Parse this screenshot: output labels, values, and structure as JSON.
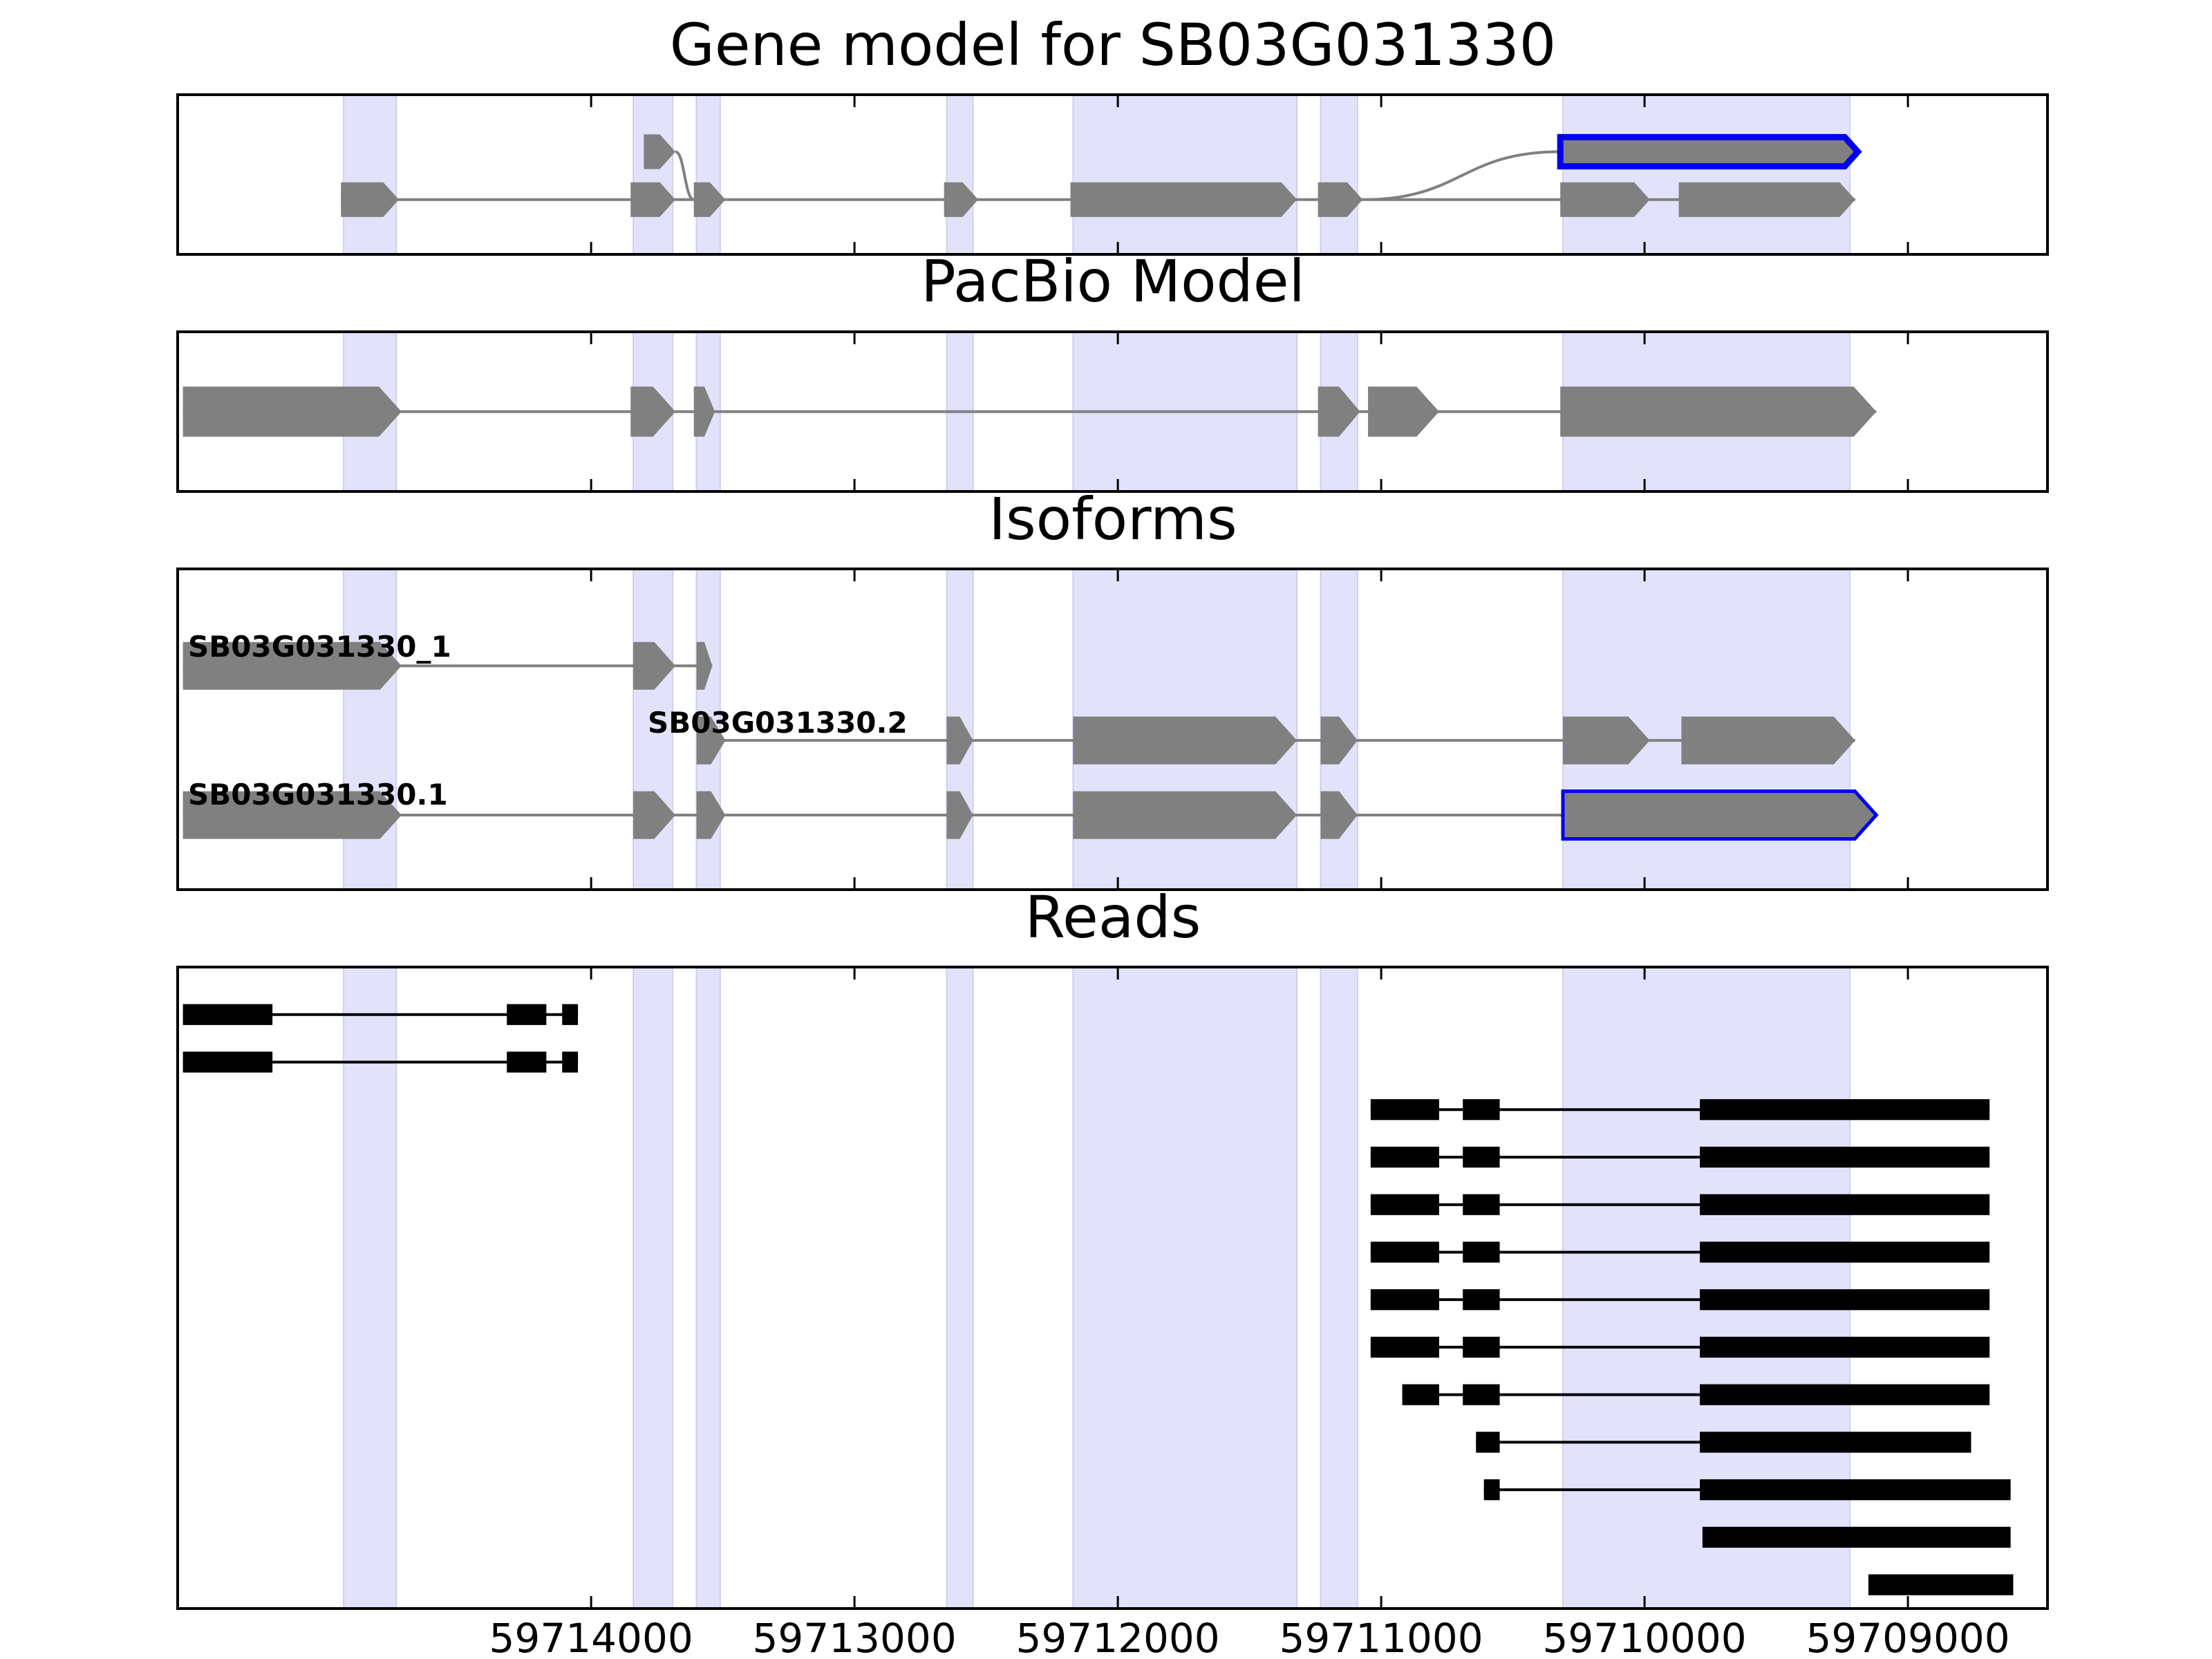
{
  "colors": {
    "highlight_band": "#e2e2fb",
    "feature": "#808080",
    "selected_outline": "#0000ee",
    "read": "#000000",
    "axis": "#000000",
    "intron": "#808080"
  },
  "chart_data": {
    "type": "genome-track",
    "x_axis": {
      "reversed": true,
      "xlim": [
        59715570,
        59708470
      ],
      "ticks": [
        59714000,
        59713000,
        59712000,
        59711000,
        59710000,
        59709000
      ],
      "tick_labels": [
        "59714000",
        "59713000",
        "59712000",
        "59711000",
        "59710000",
        "59709000"
      ]
    },
    "highlight_regions": [
      [
        59714940,
        59714740
      ],
      [
        59713840,
        59713690
      ],
      [
        59713600,
        59713510
      ],
      [
        59712650,
        59712550
      ],
      [
        59712170,
        59711320
      ],
      [
        59711230,
        59711090
      ],
      [
        59710310,
        59709220
      ]
    ],
    "panels": [
      {
        "title": "Gene model for SB03G031330",
        "ylim": [
          0,
          3.5
        ],
        "models": [
          {
            "y": 1.2,
            "half_height": 0.38,
            "exons": [
              [
                59714950,
                59714730
              ],
              [
                59713850,
                59713680
              ],
              [
                59713610,
                59713490
              ],
              [
                59712660,
                59712530
              ],
              [
                59712180,
                59711320
              ],
              [
                59711240,
                59711070
              ],
              [
                59710320,
                59709980
              ],
              [
                59709870,
                59709200
              ]
            ]
          },
          {
            "y": 2.25,
            "half_height": 0.38,
            "exons": [
              [
                59713800,
                59713680
              ]
            ]
          },
          {
            "y": 2.25,
            "half_height": 0.32,
            "exons": [
              [
                59710320,
                59709190
              ]
            ],
            "selected": true
          }
        ],
        "connectors": [
          {
            "from": [
              59713680,
              2.25
            ],
            "to": [
              59713610,
              1.2
            ]
          },
          {
            "from": [
              59711070,
              1.2
            ],
            "to": [
              59710320,
              2.25
            ]
          }
        ]
      },
      {
        "title": "PacBio Model",
        "ylim": [
          0,
          3.5
        ],
        "models": [
          {
            "y": 1.75,
            "half_height": 0.55,
            "exons": [
              [
                59715550,
                59714720
              ],
              [
                59713850,
                59713680
              ],
              [
                59713610,
                59713530
              ],
              [
                59711050,
                59710780
              ],
              [
                59711240,
                59711080
              ],
              [
                59710320,
                59709120
              ]
            ]
          }
        ],
        "connectors": []
      },
      {
        "title": "Isoforms",
        "ylim": [
          0,
          4.3
        ],
        "labels": [
          "SB03G031330_1",
          "SB03G031330.2",
          "SB03G031330.1"
        ],
        "models": [
          {
            "label": "SB03G031330_1",
            "y": 3.0,
            "half_height": 0.32,
            "exons": [
              [
                59715550,
                59714720
              ],
              [
                59713840,
                59713680
              ],
              [
                59713600,
                59713540
              ]
            ]
          },
          {
            "label": "SB03G031330.2",
            "y": 2.0,
            "half_height": 0.32,
            "exons": [
              [
                59713600,
                59713490
              ],
              [
                59712650,
                59712550
              ],
              [
                59712170,
                59711320
              ],
              [
                59711230,
                59711090
              ],
              [
                59710310,
                59709980
              ],
              [
                59709860,
                59709200
              ]
            ]
          },
          {
            "label": "SB03G031330.1",
            "y": 1.0,
            "half_height": 0.32,
            "exons": [
              [
                59715550,
                59714720
              ],
              [
                59713840,
                59713680
              ],
              [
                59713600,
                59713490
              ],
              [
                59712650,
                59712550
              ],
              [
                59712170,
                59711320
              ],
              [
                59711230,
                59711090
              ],
              [
                59710310,
                59709120
              ]
            ],
            "selected_exon": 6
          }
        ]
      },
      {
        "title": "Reads",
        "ylim": [
          0,
          13.5
        ],
        "reads": [
          [
            [
              59715550,
              59715210
            ],
            [
              59714320,
              59714170
            ],
            [
              59714110,
              59714050
            ]
          ],
          [
            [
              59715550,
              59715210
            ],
            [
              59714320,
              59714170
            ],
            [
              59714110,
              59714050
            ]
          ],
          [
            [
              59711040,
              59710780
            ],
            [
              59710690,
              59710550
            ],
            [
              59709790,
              59708690
            ]
          ],
          [
            [
              59711040,
              59710780
            ],
            [
              59710690,
              59710550
            ],
            [
              59709790,
              59708690
            ]
          ],
          [
            [
              59711040,
              59710780
            ],
            [
              59710690,
              59710550
            ],
            [
              59709790,
              59708690
            ]
          ],
          [
            [
              59711040,
              59710780
            ],
            [
              59710690,
              59710550
            ],
            [
              59709790,
              59708690
            ]
          ],
          [
            [
              59711040,
              59710780
            ],
            [
              59710690,
              59710550
            ],
            [
              59709790,
              59708690
            ]
          ],
          [
            [
              59711040,
              59710780
            ],
            [
              59710690,
              59710550
            ],
            [
              59709790,
              59708690
            ]
          ],
          [
            [
              59710920,
              59710780
            ],
            [
              59710690,
              59710550
            ],
            [
              59709790,
              59708690
            ]
          ],
          [
            [
              59710640,
              59710550
            ],
            [
              59709790,
              59708760
            ]
          ],
          [
            [
              59710610,
              59710550
            ],
            [
              59709790,
              59708610
            ]
          ],
          [
            [
              59709780,
              59708610
            ]
          ],
          [
            [
              59709150,
              59708600
            ]
          ]
        ]
      }
    ]
  }
}
